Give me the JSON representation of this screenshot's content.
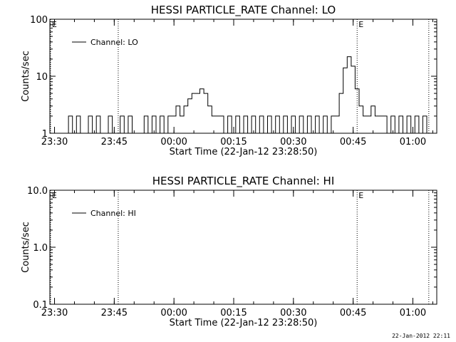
{
  "colors": {
    "background": "#ffffff",
    "foreground": "#000000"
  },
  "footer_timestamp": "22-Jan-2012 22:11",
  "chart_data": [
    {
      "type": "line",
      "title": "HESSI PARTICLE_RATE Channel: LO",
      "xlabel": "Start Time (22-Jan-12 23:28:50)",
      "ylabel": "Counts/sec",
      "yscale": "log",
      "ylim": [
        1,
        100
      ],
      "yticks": [
        1,
        10,
        100
      ],
      "ytick_labels": [
        "1",
        "10",
        "100"
      ],
      "xlim": [
        "23:28:50",
        "01:06:00"
      ],
      "xtick_labels": [
        "23:30",
        "23:45",
        "00:00",
        "00:15",
        "00:30",
        "00:45",
        "01:00"
      ],
      "legend": {
        "label": "Channel: LO",
        "position": "top-left"
      },
      "markers": [
        {
          "time": "23:29",
          "label": "E"
        },
        {
          "time": "23:46",
          "label": ""
        },
        {
          "time": "00:46",
          "label": "E"
        },
        {
          "time": "01:04",
          "label": ""
        }
      ],
      "series": [
        {
          "name": "Channel: LO",
          "x": [
            "23:33",
            "23:34",
            "23:35",
            "23:36",
            "23:37",
            "23:38",
            "23:39",
            "23:40",
            "23:41",
            "23:42",
            "23:43",
            "23:44",
            "23:45",
            "23:46",
            "23:47",
            "23:48",
            "23:49",
            "23:50",
            "23:51",
            "23:52",
            "23:53",
            "23:54",
            "23:55",
            "23:56",
            "23:57",
            "23:58",
            "23:59",
            "00:00",
            "00:01",
            "00:02",
            "00:03",
            "00:04",
            "00:05",
            "00:06",
            "00:07",
            "00:08",
            "00:09",
            "00:10",
            "00:11",
            "00:12",
            "00:13",
            "00:14",
            "00:15",
            "00:16",
            "00:17",
            "00:18",
            "00:19",
            "00:20",
            "00:21",
            "00:22",
            "00:23",
            "00:24",
            "00:25",
            "00:26",
            "00:27",
            "00:28",
            "00:29",
            "00:30",
            "00:31",
            "00:32",
            "00:33",
            "00:34",
            "00:35",
            "00:36",
            "00:37",
            "00:38",
            "00:39",
            "00:40",
            "00:41",
            "00:42",
            "00:43",
            "00:44",
            "00:45",
            "00:46",
            "00:47",
            "00:48",
            "00:49",
            "00:50",
            "00:51",
            "00:52",
            "00:53",
            "00:54",
            "00:55",
            "00:56",
            "00:57",
            "00:58",
            "00:59",
            "01:00",
            "01:01",
            "01:02",
            "01:03",
            "01:04"
          ],
          "values": [
            1,
            2,
            1,
            2,
            1,
            1,
            2,
            1,
            2,
            1,
            1,
            2,
            1,
            1,
            2,
            1,
            2,
            1,
            1,
            1,
            2,
            1,
            2,
            1,
            2,
            1,
            2,
            2,
            3,
            2,
            3,
            4,
            5,
            5,
            6,
            5,
            3,
            2,
            2,
            2,
            1,
            2,
            1,
            2,
            1,
            2,
            1,
            2,
            1,
            2,
            1,
            2,
            1,
            2,
            1,
            2,
            1,
            2,
            1,
            2,
            1,
            2,
            1,
            2,
            1,
            2,
            1,
            2,
            2,
            5,
            14,
            22,
            15,
            6,
            3,
            2,
            2,
            3,
            2,
            2,
            2,
            1,
            2,
            1,
            2,
            1,
            2,
            1,
            2,
            1,
            2,
            1
          ]
        }
      ]
    },
    {
      "type": "line",
      "title": "HESSI PARTICLE_RATE Channel: HI",
      "xlabel": "Start Time (22-Jan-12 23:28:50)",
      "ylabel": "Counts/sec",
      "yscale": "log",
      "ylim": [
        0.1,
        10
      ],
      "yticks": [
        0.1,
        1,
        10
      ],
      "ytick_labels": [
        "0.1",
        "1.0",
        "10.0"
      ],
      "xlim": [
        "23:28:50",
        "01:06:00"
      ],
      "xtick_labels": [
        "23:30",
        "23:45",
        "00:00",
        "00:15",
        "00:30",
        "00:45",
        "01:00"
      ],
      "legend": {
        "label": "Channel: HI",
        "position": "top-left"
      },
      "markers": [
        {
          "time": "23:29",
          "label": "E"
        },
        {
          "time": "23:46",
          "label": ""
        },
        {
          "time": "00:46",
          "label": "E"
        },
        {
          "time": "01:04",
          "label": ""
        }
      ],
      "series": [
        {
          "name": "Channel: HI",
          "x": [],
          "values": []
        }
      ]
    }
  ]
}
